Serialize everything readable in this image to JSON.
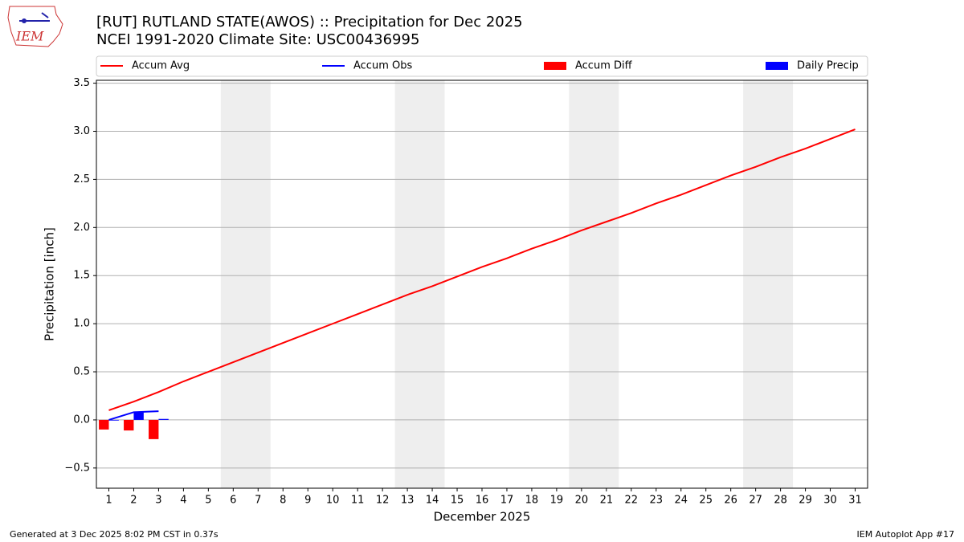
{
  "logo_text": "IEM",
  "footer": {
    "left": "Generated at 3 Dec 2025 8:02 PM CST in 0.37s",
    "right": "IEM Autoplot App #17"
  },
  "chart_data": {
    "type": "combo",
    "title": "[RUT] RUTLAND STATE(AWOS) :: Precipitation for Dec 2025",
    "subtitle": "NCEI 1991-2020 Climate Site: USC00436995",
    "x_label": "December 2025",
    "y_label": "Precipitation [inch]",
    "x": [
      1,
      2,
      3,
      4,
      5,
      6,
      7,
      8,
      9,
      10,
      11,
      12,
      13,
      14,
      15,
      16,
      17,
      18,
      19,
      20,
      21,
      22,
      23,
      24,
      25,
      26,
      27,
      28,
      29,
      30,
      31
    ],
    "xlim": [
      0.5,
      31.5
    ],
    "xticks": [
      1,
      2,
      3,
      4,
      5,
      6,
      7,
      8,
      9,
      10,
      11,
      12,
      13,
      14,
      15,
      16,
      17,
      18,
      19,
      20,
      21,
      22,
      23,
      24,
      25,
      26,
      27,
      28,
      29,
      30,
      31
    ],
    "ylim": [
      -0.71,
      3.53
    ],
    "yticks": [
      {
        "value": -0.5,
        "label": "−0.5"
      },
      {
        "value": 0,
        "label": "0.0"
      },
      0.5,
      {
        "value": 1,
        "label": "1.0"
      },
      1.5,
      {
        "value": 2,
        "label": "2.0"
      },
      2.5,
      {
        "value": 3,
        "label": "3.0"
      },
      3.5
    ],
    "grid": true,
    "shaded_x_spans": [
      [
        5.5,
        7.5
      ],
      [
        12.5,
        14.5
      ],
      [
        19.5,
        21.5
      ],
      [
        26.5,
        28.5
      ]
    ],
    "legend": "top",
    "series": [
      {
        "name": "Accum Avg",
        "type": "line",
        "color": "#ff0000",
        "values": [
          0.1,
          0.19,
          0.29,
          0.4,
          0.5,
          0.6,
          0.7,
          0.8,
          0.9,
          1.0,
          1.1,
          1.2,
          1.3,
          1.39,
          1.49,
          1.59,
          1.68,
          1.78,
          1.87,
          1.97,
          2.06,
          2.15,
          2.25,
          2.34,
          2.44,
          2.54,
          2.63,
          2.73,
          2.82,
          2.92,
          3.02
        ]
      },
      {
        "name": "Accum Obs",
        "type": "line",
        "color": "#0000ff",
        "values": [
          0.0,
          0.08,
          0.09,
          null,
          null,
          null,
          null,
          null,
          null,
          null,
          null,
          null,
          null,
          null,
          null,
          null,
          null,
          null,
          null,
          null,
          null,
          null,
          null,
          null,
          null,
          null,
          null,
          null,
          null,
          null,
          null
        ]
      },
      {
        "name": "Accum Diff",
        "type": "bar",
        "color": "#ff0000",
        "values": [
          -0.1,
          -0.11,
          -0.2,
          null,
          null,
          null,
          null,
          null,
          null,
          null,
          null,
          null,
          null,
          null,
          null,
          null,
          null,
          null,
          null,
          null,
          null,
          null,
          null,
          null,
          null,
          null,
          null,
          null,
          null,
          null,
          null
        ]
      },
      {
        "name": "Daily Precip",
        "type": "bar",
        "color": "#0000ff",
        "values": [
          0.0,
          0.08,
          0.01,
          null,
          null,
          null,
          null,
          null,
          null,
          null,
          null,
          null,
          null,
          null,
          null,
          null,
          null,
          null,
          null,
          null,
          null,
          null,
          null,
          null,
          null,
          null,
          null,
          null,
          null,
          null,
          null
        ]
      }
    ]
  }
}
